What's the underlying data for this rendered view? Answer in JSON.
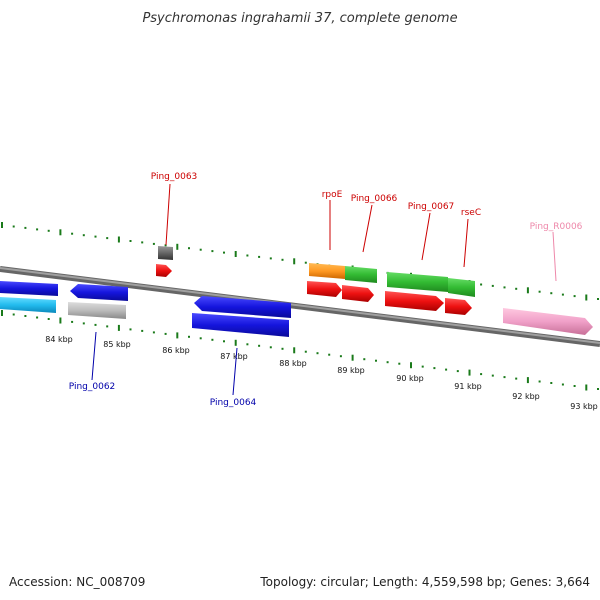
{
  "title": "Psychromonas ingrahamii 37, complete genome",
  "footer": {
    "accession": "Accession: NC_008709",
    "topology": "Topology: circular; Length: 4,559,598 bp; Genes: 3,664"
  },
  "tick_labels": [
    "84 kbp",
    "85 kbp",
    "86 kbp",
    "87 kbp",
    "88 kbp",
    "89 kbp",
    "90 kbp",
    "91 kbp",
    "92 kbp",
    "93 kbp"
  ],
  "gene_labels": [
    {
      "name": "Ping_0063",
      "color": "#cc0000"
    },
    {
      "name": "rpoE",
      "color": "#cc0000"
    },
    {
      "name": "Ping_0066",
      "color": "#cc0000"
    },
    {
      "name": "Ping_0067",
      "color": "#cc0000"
    },
    {
      "name": "rseC",
      "color": "#cc0000"
    },
    {
      "name": "Ping_R0006",
      "color": "#ee88aa"
    },
    {
      "name": "Ping_0062",
      "color": "#0000aa"
    },
    {
      "name": "Ping_0064",
      "color": "#0000aa"
    }
  ],
  "colors": {
    "backbone": "#888888",
    "ticks": "#1a7a1a",
    "forward_cds": "#ee1111",
    "reverse_cds": "#1515dd",
    "orange_feature": "#ff9922",
    "green_feature": "#33bb33",
    "cyan_feature": "#22bbee",
    "grey_feature": "#bbbbbb",
    "dark_grey_feature": "#666666",
    "pink_feature": "#f0a0c8"
  }
}
